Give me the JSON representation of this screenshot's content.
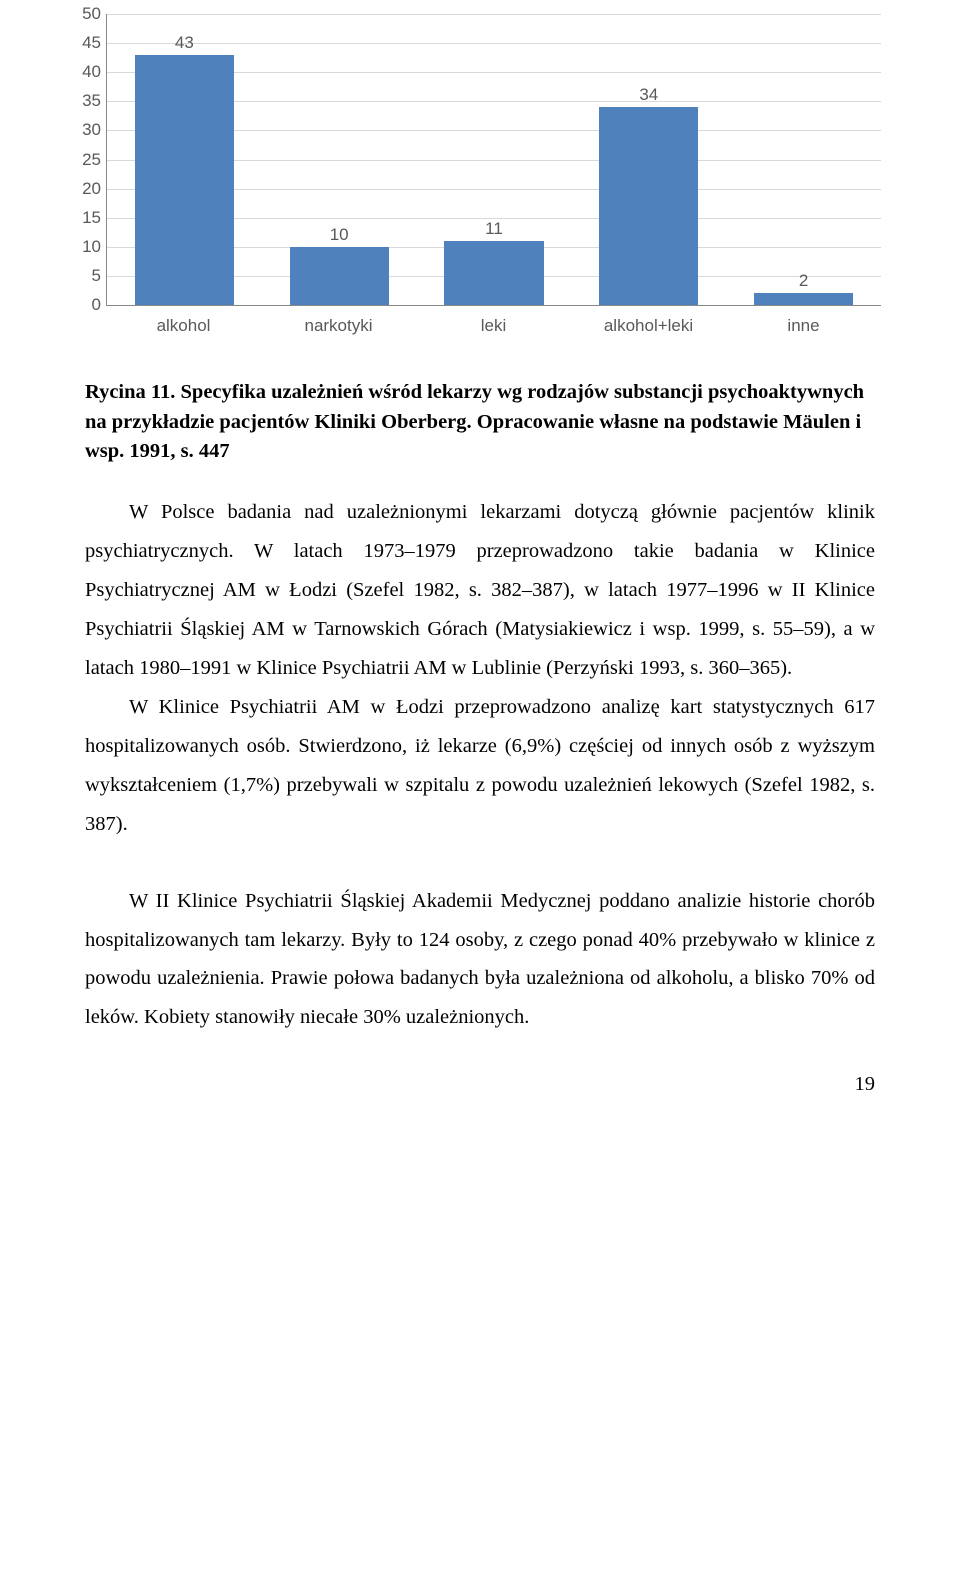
{
  "chart": {
    "type": "bar",
    "categories": [
      "alkohol",
      "narkotyki",
      "leki",
      "alkohol+leki",
      "inne"
    ],
    "values": [
      43,
      10,
      11,
      34,
      2
    ],
    "bar_color": "#4f81bd",
    "ymin": 0,
    "ymax": 50,
    "ytick_step": 5,
    "grid_color": "#d9d9d9",
    "axis_color": "#888888",
    "label_color": "#595959",
    "label_fontsize": 17,
    "bar_width_pct": 64,
    "background_color": "#ffffff"
  },
  "caption": "Rycina 11. Specyfika uzależnień wśród lekarzy wg rodzajów substancji psychoaktywnych na przykładzie pacjentów Kliniki Oberberg. Opracowanie własne na podstawie Mäulen i wsp. 1991, s. 447",
  "paragraphs": [
    "W Polsce badania nad uzależnionymi lekarzami dotyczą głównie pacjentów klinik psychiatrycznych. W latach 1973–1979 przeprowadzono takie badania w Klinice Psychiatrycznej AM w Łodzi (Szefel 1982, s. 382–387), w latach 1977–1996 w II Klinice Psychiatrii Śląskiej AM w Tarnowskich Górach (Matysiakiewicz i wsp. 1999, s. 55–59), a w latach 1980–1991 w Klinice Psychiatrii AM w Lublinie (Perzyński 1993, s. 360–365).",
    "W Klinice Psychiatrii AM w Łodzi przeprowadzono analizę kart statystycznych 617 hospitalizowanych osób. Stwierdzono, iż lekarze (6,9%) częściej od innych osób z wyższym wykształceniem (1,7%) przebywali w szpitalu z powodu uzależnień lekowych (Szefel 1982, s. 387).",
    "W II Klinice Psychiatrii Śląskiej Akademii Medycznej poddano analizie historie chorób hospitalizowanych tam lekarzy. Były to 124 osoby, z czego ponad 40% przebywało w klinice z powodu uzależnienia. Prawie połowa badanych była uzależniona od alkoholu, a blisko 70% od leków. Kobiety stanowiły niecałe 30% uzależnionych."
  ],
  "page_number": "19"
}
